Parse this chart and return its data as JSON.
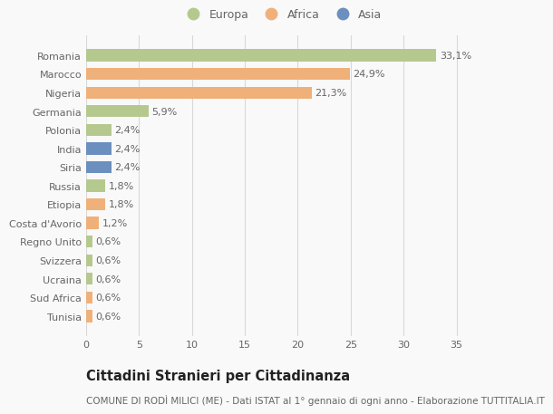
{
  "categories": [
    "Tunisia",
    "Sud Africa",
    "Ucraina",
    "Svizzera",
    "Regno Unito",
    "Costa d'Avorio",
    "Etiopia",
    "Russia",
    "Siria",
    "India",
    "Polonia",
    "Germania",
    "Nigeria",
    "Marocco",
    "Romania"
  ],
  "values": [
    0.6,
    0.6,
    0.6,
    0.6,
    0.6,
    1.2,
    1.8,
    1.8,
    2.4,
    2.4,
    2.4,
    5.9,
    21.3,
    24.9,
    33.1
  ],
  "labels": [
    "0,6%",
    "0,6%",
    "0,6%",
    "0,6%",
    "0,6%",
    "1,2%",
    "1,8%",
    "1,8%",
    "2,4%",
    "2,4%",
    "2,4%",
    "5,9%",
    "21,3%",
    "24,9%",
    "33,1%"
  ],
  "continent": [
    "Africa",
    "Africa",
    "Europa",
    "Europa",
    "Europa",
    "Africa",
    "Africa",
    "Europa",
    "Asia",
    "Asia",
    "Europa",
    "Europa",
    "Africa",
    "Africa",
    "Europa"
  ],
  "colors": {
    "Europa": "#b5c98e",
    "Africa": "#f0b07a",
    "Asia": "#6b8fbf"
  },
  "legend_labels": [
    "Europa",
    "Africa",
    "Asia"
  ],
  "title": "Cittadini Stranieri per Cittadinanza",
  "subtitle": "COMUNE DI RODÌ MILICI (ME) - Dati ISTAT al 1° gennaio di ogni anno - Elaborazione TUTTITALIA.IT",
  "xlim": [
    0,
    37
  ],
  "xticks": [
    0,
    5,
    10,
    15,
    20,
    25,
    30,
    35
  ],
  "bg_color": "#f9f9f9",
  "grid_color": "#d8d8d8",
  "bar_height": 0.65,
  "label_fontsize": 8,
  "tick_fontsize": 8,
  "title_fontsize": 10.5,
  "subtitle_fontsize": 7.5
}
